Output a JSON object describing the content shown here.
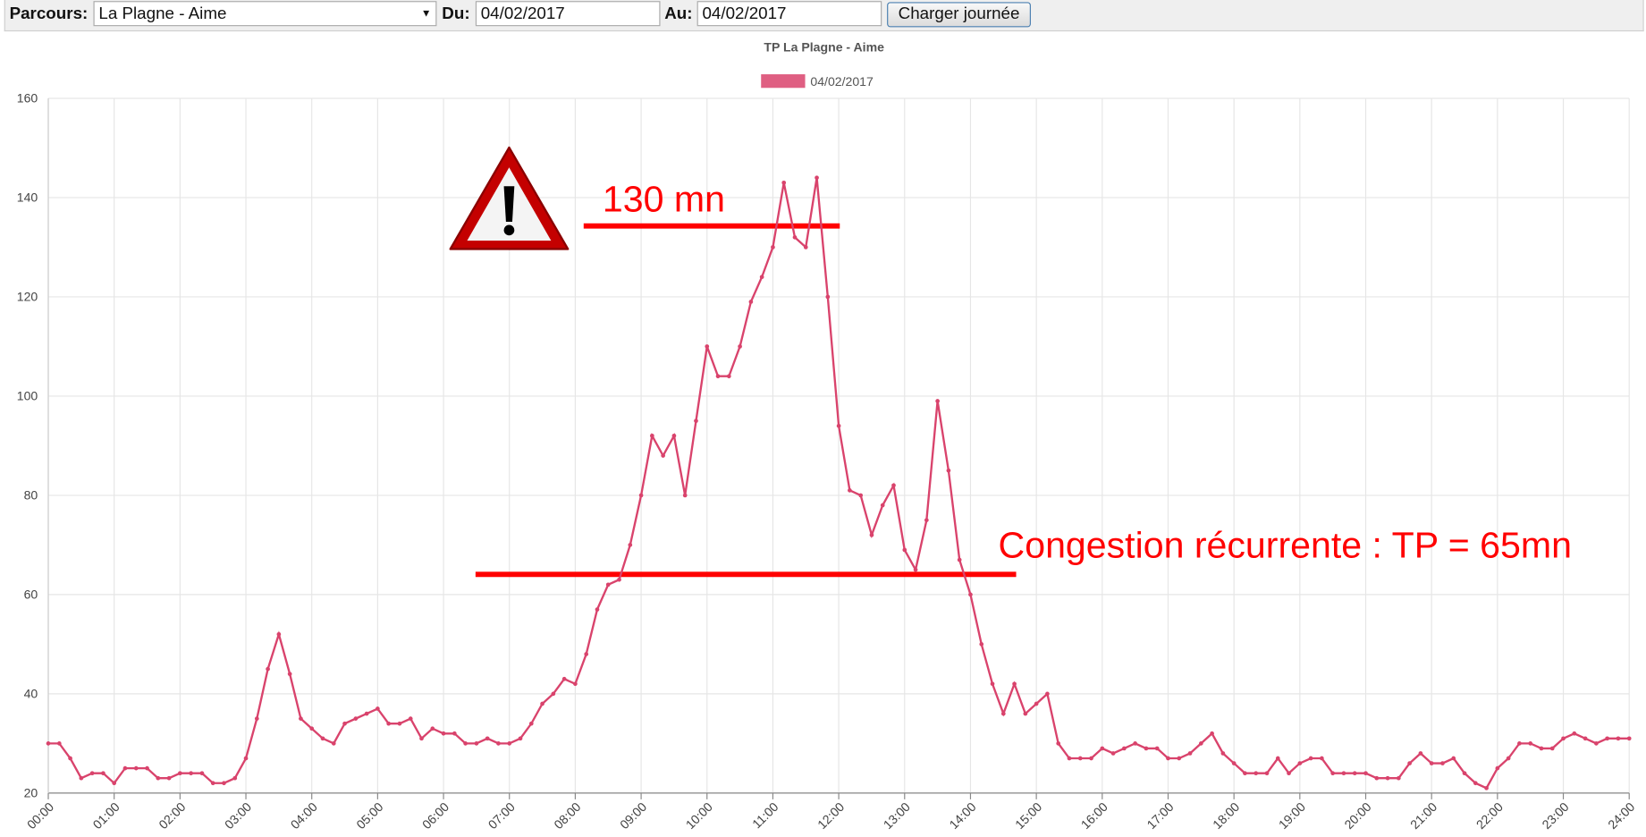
{
  "form": {
    "route_label": "Parcours:",
    "route": "La Plagne - Aime",
    "from_label": "Du:",
    "from": "04/02/2017",
    "to_label": "Au:",
    "to": "04/02/2017",
    "button": "Charger journée"
  },
  "chart_data": {
    "type": "line",
    "title": "TP La Plagne - Aime",
    "x": [
      0,
      10,
      20,
      30,
      40,
      50,
      60,
      70,
      80,
      90,
      100,
      110,
      120,
      130,
      140,
      150,
      160,
      170,
      180,
      190,
      200,
      210,
      220,
      230,
      240,
      250,
      260,
      270,
      280,
      290,
      300,
      310,
      320,
      330,
      340,
      350,
      360,
      370,
      380,
      390,
      400,
      410,
      420,
      430,
      440,
      450,
      460,
      470,
      480,
      490,
      500,
      510,
      520,
      530,
      540,
      550,
      560,
      570,
      580,
      590,
      600,
      610,
      620,
      630,
      640,
      650,
      660,
      670,
      680,
      690,
      700,
      710,
      720,
      730,
      740,
      750,
      760,
      770,
      780,
      790,
      800,
      810,
      820,
      830,
      840,
      850,
      860,
      870,
      880,
      890,
      900,
      910,
      920,
      930,
      940,
      950,
      960,
      970,
      980,
      990,
      1000,
      1010,
      1020,
      1030,
      1040,
      1050,
      1060,
      1070,
      1080,
      1090,
      1100,
      1110,
      1120,
      1130,
      1140,
      1150,
      1160,
      1170,
      1180,
      1190,
      1200,
      1210,
      1220,
      1230,
      1240,
      1250,
      1260,
      1270,
      1280,
      1290,
      1300,
      1310,
      1320,
      1330,
      1340,
      1350,
      1360,
      1370,
      1380,
      1390,
      1400,
      1410,
      1420,
      1430,
      1440
    ],
    "series": [
      {
        "name": "04/02/2017",
        "color": "#d9436c",
        "values": [
          30,
          30,
          27,
          23,
          24,
          24,
          22,
          25,
          25,
          25,
          23,
          23,
          24,
          24,
          24,
          22,
          22,
          23,
          27,
          35,
          45,
          52,
          44,
          35,
          33,
          31,
          30,
          34,
          35,
          36,
          37,
          34,
          34,
          35,
          31,
          33,
          32,
          32,
          30,
          30,
          31,
          30,
          30,
          31,
          34,
          38,
          40,
          43,
          42,
          48,
          57,
          62,
          63,
          70,
          80,
          92,
          88,
          92,
          80,
          95,
          110,
          104,
          104,
          110,
          119,
          124,
          130,
          143,
          132,
          130,
          144,
          120,
          94,
          81,
          80,
          72,
          78,
          82,
          69,
          65,
          75,
          99,
          85,
          67,
          60,
          50,
          42,
          36,
          42,
          36,
          38,
          40,
          30,
          27,
          27,
          27,
          29,
          28,
          29,
          30,
          29,
          29,
          27,
          27,
          28,
          30,
          32,
          28,
          26,
          24,
          24,
          24,
          27,
          24,
          26,
          27,
          27,
          24,
          24,
          24,
          24,
          23,
          23,
          23,
          26,
          28,
          26,
          26,
          27,
          24,
          22,
          21,
          25,
          27,
          30,
          30,
          29,
          29,
          31,
          32,
          31,
          30,
          31,
          31,
          31
        ]
      }
    ],
    "xlim": [
      0,
      1440
    ],
    "xticks": [
      {
        "value": 0,
        "label": "00:00"
      },
      {
        "value": 60,
        "label": "01:00"
      },
      {
        "value": 120,
        "label": "02:00"
      },
      {
        "value": 180,
        "label": "03:00"
      },
      {
        "value": 240,
        "label": "04:00"
      },
      {
        "value": 300,
        "label": "05:00"
      },
      {
        "value": 360,
        "label": "06:00"
      },
      {
        "value": 420,
        "label": "07:00"
      },
      {
        "value": 480,
        "label": "08:00"
      },
      {
        "value": 540,
        "label": "09:00"
      },
      {
        "value": 600,
        "label": "10:00"
      },
      {
        "value": 660,
        "label": "11:00"
      },
      {
        "value": 720,
        "label": "12:00"
      },
      {
        "value": 780,
        "label": "13:00"
      },
      {
        "value": 840,
        "label": "14:00"
      },
      {
        "value": 900,
        "label": "15:00"
      },
      {
        "value": 960,
        "label": "16:00"
      },
      {
        "value": 1020,
        "label": "17:00"
      },
      {
        "value": 1080,
        "label": "18:00"
      },
      {
        "value": 1140,
        "label": "19:00"
      },
      {
        "value": 1200,
        "label": "20:00"
      },
      {
        "value": 1260,
        "label": "21:00"
      },
      {
        "value": 1320,
        "label": "22:00"
      },
      {
        "value": 1380,
        "label": "23:00"
      },
      {
        "value": 1440,
        "label": "24:00"
      }
    ],
    "ylim": [
      20,
      160
    ],
    "yticks": [
      20,
      40,
      60,
      80,
      100,
      120,
      140,
      160
    ],
    "grid": true,
    "annotations": [
      "130 mn",
      "Congestion récurrente : TP = 65mn"
    ]
  }
}
